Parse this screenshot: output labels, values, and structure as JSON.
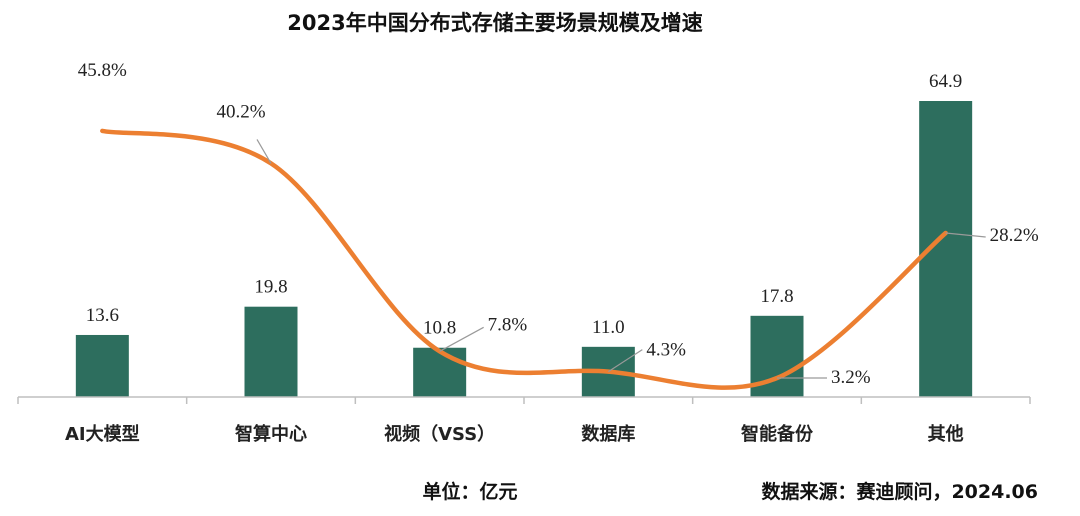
{
  "chart_data": {
    "type": "bar+line",
    "title": "2023年中国分布式存储主要场景规模及增速",
    "categories": [
      "AI大模型",
      "智算中心",
      "视频（VSS）",
      "数据库",
      "智能备份",
      "其他"
    ],
    "series": [
      {
        "kind": "bar",
        "values": [
          13.6,
          19.8,
          10.8,
          11.0,
          17.8,
          64.9
        ],
        "labels": [
          "13.6",
          "19.8",
          "10.8",
          "11.0",
          "17.8",
          "64.9"
        ]
      },
      {
        "kind": "line",
        "values": [
          45.8,
          40.2,
          7.8,
          4.3,
          3.2,
          28.2
        ],
        "labels": [
          "45.8%",
          "40.2%",
          "7.8%",
          "4.3%",
          "3.2%",
          "28.2%"
        ]
      }
    ],
    "unit_note": "单位：亿元",
    "source_note": "数据来源：赛迪顾问，2024.06",
    "colors": {
      "bar": "#2d6e5e",
      "line": "#ec7f31",
      "axis": "#bfbfbf"
    },
    "grid": false,
    "legend": "none"
  }
}
